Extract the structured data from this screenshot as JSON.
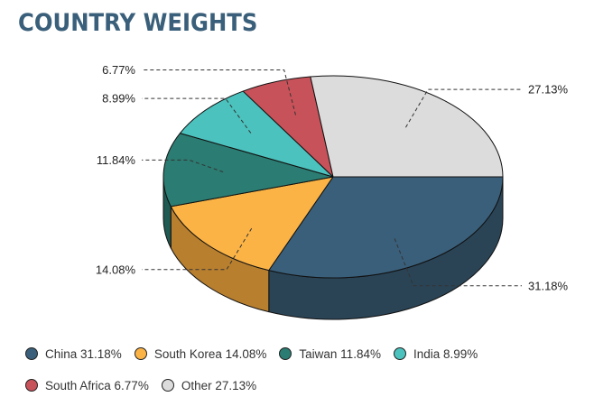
{
  "title": "COUNTRY WEIGHTS",
  "chart_data": {
    "type": "pie",
    "title": "COUNTRY WEIGHTS",
    "slices": [
      {
        "name": "China",
        "value": 31.18,
        "label": "31.18%",
        "legend": "China 31.18%",
        "color": "#3a5f7a",
        "side": "#2a4456"
      },
      {
        "name": "South Korea",
        "value": 14.08,
        "label": "14.08%",
        "legend": "South Korea 14.08%",
        "color": "#fbb346",
        "side": "#b87f2f"
      },
      {
        "name": "Taiwan",
        "value": 11.84,
        "label": "11.84%",
        "legend": "Taiwan 11.84%",
        "color": "#2b7c72",
        "side": "#1f5a53"
      },
      {
        "name": "India",
        "value": 8.99,
        "label": "8.99%",
        "legend": "India 8.99%",
        "color": "#4bc2bd",
        "side": "#37908c"
      },
      {
        "name": "South Africa",
        "value": 6.77,
        "label": "6.77%",
        "legend": "South Africa 6.77%",
        "color": "#c8525a",
        "side": "#953b41"
      },
      {
        "name": "Other",
        "value": 27.13,
        "label": "27.13%",
        "legend": "Other 27.13%",
        "color": "#dcdcdc",
        "side": "#a8a8a8"
      }
    ],
    "legend_position": "bottom"
  }
}
